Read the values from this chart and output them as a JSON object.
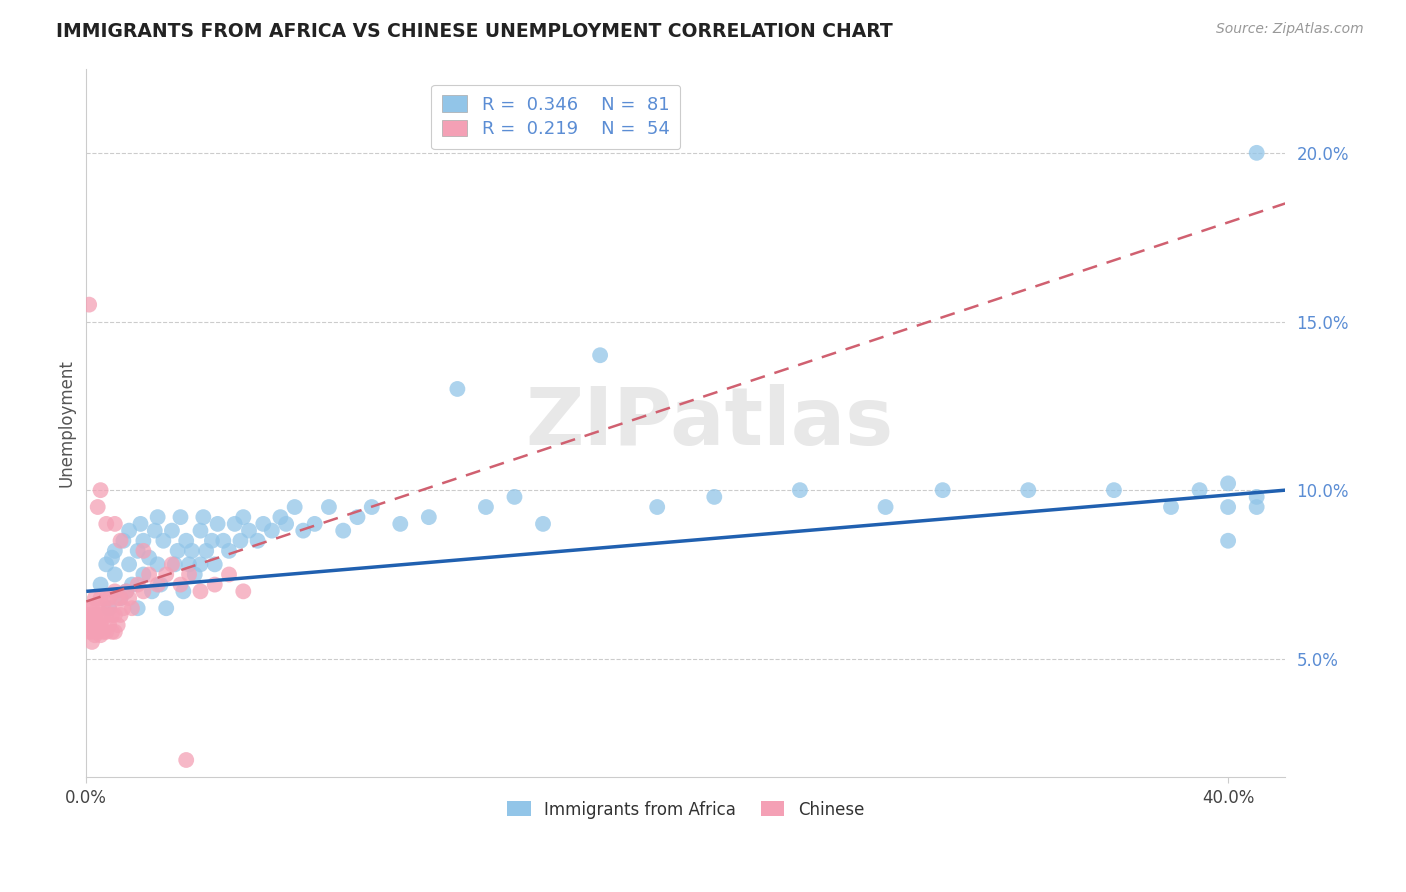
{
  "title": "IMMIGRANTS FROM AFRICA VS CHINESE UNEMPLOYMENT CORRELATION CHART",
  "source": "Source: ZipAtlas.com",
  "ylabel": "Unemployment",
  "yticks": [
    0.05,
    0.1,
    0.15,
    0.2
  ],
  "ytick_labels": [
    "5.0%",
    "10.0%",
    "15.0%",
    "20.0%"
  ],
  "xlim": [
    0.0,
    0.42
  ],
  "ylim": [
    0.015,
    0.225
  ],
  "watermark": "ZIPatlas",
  "legend_blue_r": "0.346",
  "legend_blue_n": "81",
  "legend_pink_r": "0.219",
  "legend_pink_n": "54",
  "legend_label_blue": "Immigrants from Africa",
  "legend_label_pink": "Chinese",
  "blue_color": "#92C5E8",
  "pink_color": "#F4A0B5",
  "line_blue_color": "#2060B0",
  "line_pink_color": "#D06070",
  "background_color": "#FFFFFF",
  "grid_color": "#CCCCCC",
  "blue_scatter_x": [
    0.005,
    0.007,
    0.008,
    0.009,
    0.01,
    0.01,
    0.012,
    0.013,
    0.014,
    0.015,
    0.015,
    0.016,
    0.018,
    0.018,
    0.019,
    0.02,
    0.02,
    0.022,
    0.023,
    0.024,
    0.025,
    0.025,
    0.026,
    0.027,
    0.028,
    0.03,
    0.031,
    0.032,
    0.033,
    0.034,
    0.035,
    0.036,
    0.037,
    0.038,
    0.04,
    0.04,
    0.041,
    0.042,
    0.044,
    0.045,
    0.046,
    0.048,
    0.05,
    0.052,
    0.054,
    0.055,
    0.057,
    0.06,
    0.062,
    0.065,
    0.068,
    0.07,
    0.073,
    0.076,
    0.08,
    0.085,
    0.09,
    0.095,
    0.1,
    0.11,
    0.12,
    0.13,
    0.14,
    0.15,
    0.16,
    0.18,
    0.2,
    0.22,
    0.25,
    0.28,
    0.3,
    0.33,
    0.36,
    0.38,
    0.39,
    0.4,
    0.4,
    0.4,
    0.41,
    0.41,
    0.41
  ],
  "blue_scatter_y": [
    0.072,
    0.078,
    0.065,
    0.08,
    0.075,
    0.082,
    0.068,
    0.085,
    0.07,
    0.078,
    0.088,
    0.072,
    0.082,
    0.065,
    0.09,
    0.075,
    0.085,
    0.08,
    0.07,
    0.088,
    0.078,
    0.092,
    0.072,
    0.085,
    0.065,
    0.088,
    0.078,
    0.082,
    0.092,
    0.07,
    0.085,
    0.078,
    0.082,
    0.075,
    0.088,
    0.078,
    0.092,
    0.082,
    0.085,
    0.078,
    0.09,
    0.085,
    0.082,
    0.09,
    0.085,
    0.092,
    0.088,
    0.085,
    0.09,
    0.088,
    0.092,
    0.09,
    0.095,
    0.088,
    0.09,
    0.095,
    0.088,
    0.092,
    0.095,
    0.09,
    0.092,
    0.13,
    0.095,
    0.098,
    0.09,
    0.14,
    0.095,
    0.098,
    0.1,
    0.095,
    0.1,
    0.1,
    0.1,
    0.095,
    0.1,
    0.095,
    0.102,
    0.085,
    0.095,
    0.098,
    0.2
  ],
  "pink_scatter_x": [
    0.0005,
    0.001,
    0.001,
    0.001,
    0.0015,
    0.002,
    0.002,
    0.002,
    0.002,
    0.003,
    0.003,
    0.003,
    0.003,
    0.004,
    0.004,
    0.004,
    0.005,
    0.005,
    0.005,
    0.005,
    0.006,
    0.006,
    0.006,
    0.007,
    0.007,
    0.007,
    0.008,
    0.008,
    0.008,
    0.009,
    0.009,
    0.01,
    0.01,
    0.01,
    0.011,
    0.011,
    0.012,
    0.012,
    0.013,
    0.014,
    0.015,
    0.016,
    0.018,
    0.02,
    0.022,
    0.025,
    0.028,
    0.03,
    0.033,
    0.036,
    0.04,
    0.045,
    0.05,
    0.055
  ],
  "pink_scatter_y": [
    0.063,
    0.058,
    0.065,
    0.06,
    0.062,
    0.055,
    0.06,
    0.065,
    0.058,
    0.062,
    0.068,
    0.057,
    0.063,
    0.06,
    0.065,
    0.058,
    0.063,
    0.057,
    0.06,
    0.068,
    0.065,
    0.058,
    0.062,
    0.063,
    0.068,
    0.058,
    0.065,
    0.06,
    0.068,
    0.063,
    0.058,
    0.07,
    0.063,
    0.058,
    0.068,
    0.06,
    0.063,
    0.068,
    0.065,
    0.07,
    0.068,
    0.065,
    0.072,
    0.07,
    0.075,
    0.072,
    0.075,
    0.078,
    0.072,
    0.075,
    0.07,
    0.072,
    0.075,
    0.07
  ],
  "pink_outlier_x": [
    0.001,
    0.004,
    0.005,
    0.007,
    0.01,
    0.012,
    0.02,
    0.035
  ],
  "pink_outlier_y": [
    0.155,
    0.095,
    0.1,
    0.09,
    0.09,
    0.085,
    0.082,
    0.02
  ],
  "blue_line_x0": 0.0,
  "blue_line_x1": 0.42,
  "blue_line_y0": 0.07,
  "blue_line_y1": 0.1,
  "pink_line_x0": 0.0,
  "pink_line_x1": 0.42,
  "pink_line_y0": 0.067,
  "pink_line_y1": 0.185
}
